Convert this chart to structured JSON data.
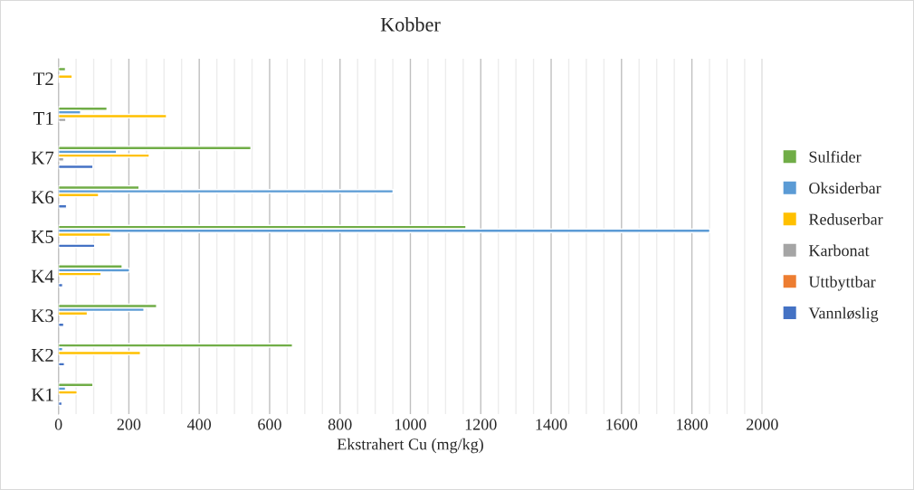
{
  "chart_data": {
    "type": "bar",
    "orientation": "horizontal",
    "title": "Kobber",
    "xlabel": "Ekstrahert Cu (mg/kg)",
    "categories": [
      "T2",
      "T1",
      "K7",
      "K6",
      "K5",
      "K4",
      "K3",
      "K2",
      "K1"
    ],
    "series": [
      {
        "name": "Sulfider",
        "color": "#70ad47",
        "values": [
          20,
          138,
          547,
          229,
          1158,
          181,
          279,
          665,
          98
        ]
      },
      {
        "name": "Oksiderbar",
        "color": "#5b9bd5",
        "values": [
          null,
          63,
          165,
          951,
          1851,
          202,
          243,
          12,
          20
        ]
      },
      {
        "name": "Reduserbar",
        "color": "#ffc000",
        "values": [
          39,
          307,
          258,
          114,
          148,
          121,
          82,
          233,
          53
        ]
      },
      {
        "name": "Karbonat",
        "color": "#a5a5a5",
        "values": [
          3,
          21,
          15,
          null,
          null,
          null,
          null,
          null,
          null
        ]
      },
      {
        "name": "Uttbyttbar",
        "color": "#ed7d31",
        "values": [
          null,
          null,
          null,
          null,
          null,
          null,
          null,
          null,
          null
        ]
      },
      {
        "name": "Vannløslig",
        "color": "#4472c4",
        "values": [
          null,
          null,
          98,
          23,
          103,
          12,
          15,
          17,
          10
        ]
      }
    ],
    "xlim": [
      0,
      2000
    ],
    "xticks": [
      0,
      {
        "value": 50,
        "label": null
      },
      {
        "value": 100,
        "label": null
      },
      {
        "value": 150,
        "label": null
      },
      200,
      {
        "value": 250,
        "label": null
      },
      {
        "value": 300,
        "label": null
      },
      {
        "value": 350,
        "label": null
      },
      400,
      {
        "value": 450,
        "label": null
      },
      {
        "value": 500,
        "label": null
      },
      {
        "value": 550,
        "label": null
      },
      600,
      {
        "value": 650,
        "label": null
      },
      {
        "value": 700,
        "label": null
      },
      {
        "value": 750,
        "label": null
      },
      800,
      {
        "value": 850,
        "label": null
      },
      {
        "value": 900,
        "label": null
      },
      {
        "value": 950,
        "label": null
      },
      1000,
      {
        "value": 1050,
        "label": null
      },
      {
        "value": 1100,
        "label": null
      },
      {
        "value": 1150,
        "label": null
      },
      1200,
      {
        "value": 1250,
        "label": null
      },
      {
        "value": 1300,
        "label": null
      },
      {
        "value": 1350,
        "label": null
      },
      1400,
      {
        "value": 1450,
        "label": null
      },
      {
        "value": 1500,
        "label": null
      },
      {
        "value": 1550,
        "label": null
      },
      1600,
      {
        "value": 1650,
        "label": null
      },
      {
        "value": 1700,
        "label": null
      },
      {
        "value": 1750,
        "label": null
      },
      1800,
      {
        "value": 1850,
        "label": null
      },
      {
        "value": 1900,
        "label": null
      },
      {
        "value": 1950,
        "label": null
      },
      2000
    ],
    "grid": "x",
    "legend": "right"
  }
}
